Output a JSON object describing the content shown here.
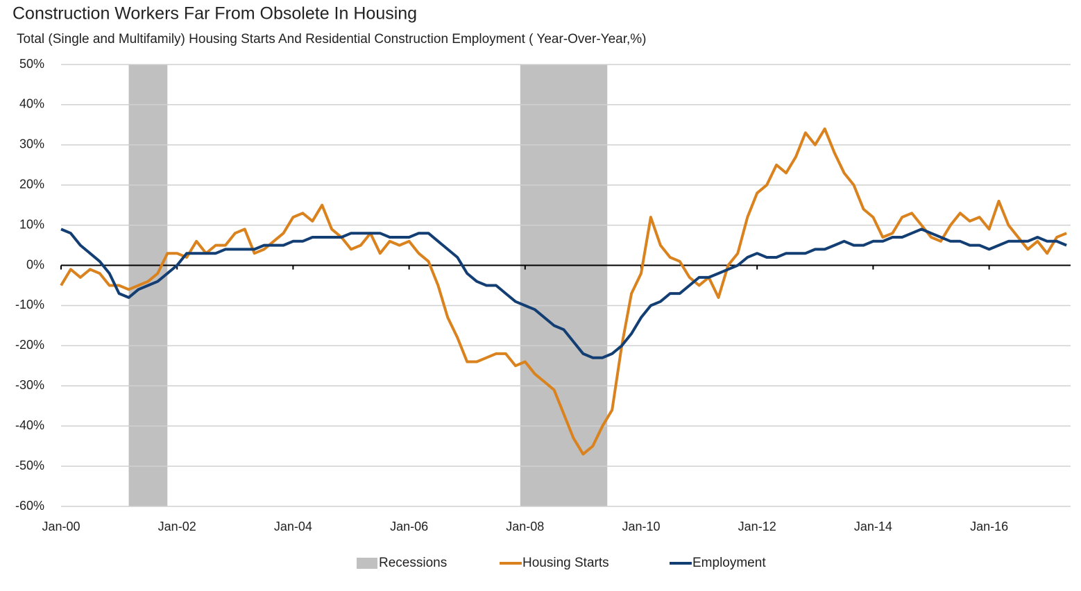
{
  "chart_data": {
    "type": "line",
    "title": "Construction Workers Far From Obsolete In Housing",
    "subtitle": "Total (Single and Multifamily) Housing Starts And Residential Construction Employment ( Year-Over-Year,%)",
    "categories": [
      "Jan-00",
      null,
      null,
      null,
      null,
      null,
      null,
      null,
      null,
      null,
      null,
      null,
      "Jan-02",
      null,
      null,
      null,
      null,
      null,
      null,
      null,
      null,
      null,
      null,
      null,
      "Jan-04",
      null,
      null,
      null,
      null,
      null,
      null,
      null,
      null,
      null,
      null,
      null,
      "Jan-06",
      null,
      null,
      null,
      null,
      null,
      null,
      null,
      null,
      null,
      null,
      null,
      "Jan-08",
      null,
      null,
      null,
      null,
      null,
      null,
      null,
      null,
      null,
      null,
      null,
      "Jan-10",
      null,
      null,
      null,
      null,
      null,
      null,
      null,
      null,
      null,
      null,
      null,
      "Jan-12",
      null,
      null,
      null,
      null,
      null,
      null,
      null,
      null,
      null,
      null,
      null,
      "Jan-14",
      null,
      null,
      null,
      null,
      null,
      null,
      null,
      null,
      null,
      null,
      null,
      "Jan-16",
      null,
      null,
      null,
      null,
      null,
      null,
      null,
      null
    ],
    "recessions": {
      "name": "Recessions",
      "color": "#c0c0c0",
      "spans": [
        [
          7,
          11
        ],
        [
          47.5,
          56.5
        ]
      ]
    },
    "series": [
      {
        "name": "Housing Starts",
        "color": "#d9821e",
        "values": [
          -5,
          -1,
          -3,
          -1,
          -2,
          -5,
          -5,
          -6,
          -5,
          -4,
          -2,
          3,
          3,
          2,
          6,
          3,
          5,
          5,
          8,
          9,
          3,
          4,
          6,
          8,
          12,
          13,
          11,
          15,
          9,
          7,
          4,
          5,
          8,
          3,
          6,
          5,
          6,
          3,
          1,
          -5,
          -13,
          -18,
          -24,
          -24,
          -23,
          -22,
          -22,
          -25,
          -24,
          -27,
          -29,
          -31,
          -37,
          -43,
          -47,
          -45,
          -40,
          -36,
          -20,
          -7,
          -2,
          12,
          5,
          2,
          1,
          -3,
          -5,
          -3,
          -8,
          0,
          3,
          12,
          18,
          20,
          25,
          23,
          27,
          33,
          30,
          34,
          28,
          23,
          20,
          14,
          12,
          7,
          8,
          12,
          13,
          10,
          7,
          6,
          10,
          13,
          11,
          12,
          9,
          16,
          10,
          7,
          4,
          6,
          3,
          7,
          8
        ]
      },
      {
        "name": "Employment",
        "color": "#123e73",
        "values": [
          9,
          8,
          5,
          3,
          1,
          -2,
          -7,
          -8,
          -6,
          -5,
          -4,
          -2,
          0,
          3,
          3,
          3,
          3,
          4,
          4,
          4,
          4,
          5,
          5,
          5,
          6,
          6,
          7,
          7,
          7,
          7,
          8,
          8,
          8,
          8,
          7,
          7,
          7,
          8,
          8,
          6,
          4,
          2,
          -2,
          -4,
          -5,
          -5,
          -7,
          -9,
          -10,
          -11,
          -13,
          -15,
          -16,
          -19,
          -22,
          -23,
          -23,
          -22,
          -20,
          -17,
          -13,
          -10,
          -9,
          -7,
          -7,
          -5,
          -3,
          -3,
          -2,
          -1,
          0,
          2,
          3,
          2,
          2,
          3,
          3,
          3,
          4,
          4,
          5,
          6,
          5,
          5,
          6,
          6,
          7,
          7,
          8,
          9,
          8,
          7,
          6,
          6,
          5,
          5,
          4,
          5,
          6,
          6,
          6,
          7,
          6,
          6,
          5
        ]
      }
    ],
    "ylim": [
      -60,
      50
    ],
    "yticks": [
      {
        "value": -60,
        "label": "-60%"
      },
      {
        "value": -50,
        "label": "-50%"
      },
      {
        "value": -40,
        "label": "-40%"
      },
      {
        "value": -30,
        "label": "-30%"
      },
      {
        "value": -20,
        "label": "-20%"
      },
      {
        "value": -10,
        "label": "-10%"
      },
      {
        "value": 0,
        "label": "0%"
      },
      {
        "value": 10,
        "label": "10%"
      },
      {
        "value": 20,
        "label": "20%"
      },
      {
        "value": 30,
        "label": "30%"
      },
      {
        "value": 40,
        "label": "40%"
      },
      {
        "value": 50,
        "label": "50%"
      }
    ],
    "grid": true
  }
}
